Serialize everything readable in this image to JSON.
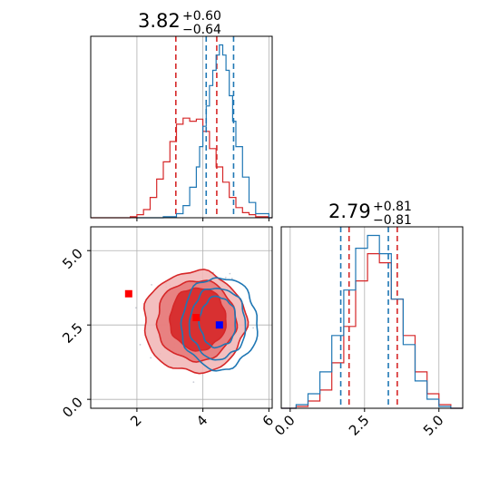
{
  "chart_data": [
    {
      "panel": "marginal-param-1",
      "type": "histogram",
      "title": {
        "value": "3.82",
        "upper": "+0.60",
        "lower": "−0.64"
      },
      "xlim": [
        0.6,
        6.1
      ],
      "grid": true,
      "series": [
        {
          "color": "#d62728",
          "x": [
            0.6,
            1.0,
            1.4,
            1.8,
            2.0,
            2.2,
            2.4,
            2.6,
            2.8,
            3.0,
            3.2,
            3.4,
            3.6,
            3.8,
            4.0,
            4.2,
            4.4,
            4.6,
            4.8,
            5.0,
            5.2,
            5.4,
            5.6,
            6.0
          ],
          "counts": [
            0,
            0,
            0,
            1,
            3,
            8,
            20,
            38,
            55,
            75,
            92,
            98,
            95,
            97,
            85,
            68,
            50,
            35,
            20,
            10,
            5,
            3,
            1,
            0
          ],
          "quantile_lines": [
            3.18,
            4.42
          ]
        },
        {
          "color": "#1f77b4",
          "x": [
            2.0,
            2.4,
            2.8,
            3.2,
            3.4,
            3.6,
            3.8,
            3.9,
            4.0,
            4.1,
            4.2,
            4.3,
            4.4,
            4.5,
            4.6,
            4.7,
            4.8,
            4.9,
            5.0,
            5.2,
            5.4,
            5.6,
            6.0
          ],
          "counts": [
            0,
            0,
            1,
            4,
            12,
            30,
            50,
            70,
            90,
            110,
            130,
            145,
            160,
            170,
            160,
            145,
            120,
            95,
            70,
            40,
            15,
            4,
            0
          ],
          "quantile_lines": [
            4.1,
            4.93
          ]
        }
      ]
    },
    {
      "panel": "marginal-param-2",
      "type": "histogram",
      "title": {
        "value": "2.79",
        "upper": "+0.81",
        "lower": "−0.81"
      },
      "xlim": [
        -0.3,
        5.8
      ],
      "xticks": [
        "0.0",
        "2.5",
        "5.0"
      ],
      "grid": true,
      "series": [
        {
          "color": "#d62728",
          "x": [
            -0.3,
            0.2,
            0.6,
            1.0,
            1.4,
            1.8,
            2.2,
            2.6,
            3.0,
            3.4,
            3.8,
            4.2,
            4.6,
            5.0,
            5.4,
            5.8
          ],
          "counts": [
            0,
            1,
            4,
            10,
            25,
            45,
            70,
            85,
            80,
            60,
            40,
            20,
            8,
            2,
            0,
            0
          ],
          "quantile_lines": [
            1.98,
            3.6
          ]
        },
        {
          "color": "#1f77b4",
          "x": [
            -0.3,
            0.2,
            0.6,
            1.0,
            1.4,
            1.8,
            2.2,
            2.6,
            3.0,
            3.4,
            3.8,
            4.2,
            4.6,
            5.0,
            5.4,
            5.8
          ],
          "counts": [
            0,
            2,
            8,
            20,
            40,
            65,
            88,
            95,
            85,
            60,
            35,
            15,
            5,
            1,
            0,
            0
          ],
          "quantile_lines": [
            1.7,
            3.3
          ]
        }
      ]
    },
    {
      "panel": "joint-param-1-vs-param-2",
      "type": "contour",
      "xlim": [
        0.6,
        6.1
      ],
      "ylim": [
        -0.3,
        5.8
      ],
      "xticks": [
        "2",
        "4",
        "6"
      ],
      "yticks": [
        "0.0",
        "2.5",
        "5.0"
      ],
      "grid": true,
      "red": {
        "color": "#d62728",
        "contours": [
          {
            "level": "outer",
            "cx": 3.75,
            "cy": 2.6,
            "rx": 1.55,
            "ry": 1.7
          },
          {
            "level": "middle",
            "cx": 3.8,
            "cy": 2.65,
            "rx": 1.2,
            "ry": 1.35
          },
          {
            "level": "inner",
            "cx": 3.85,
            "cy": 2.7,
            "rx": 0.85,
            "ry": 1.05
          }
        ]
      },
      "blue": {
        "color": "#1f77b4",
        "contours": [
          {
            "level": "outer",
            "cx": 4.5,
            "cy": 2.55,
            "rx": 1.15,
            "ry": 1.55
          },
          {
            "level": "middle",
            "cx": 4.45,
            "cy": 2.55,
            "rx": 0.85,
            "ry": 1.2
          },
          {
            "level": "inner",
            "cx": 4.45,
            "cy": 2.6,
            "rx": 0.55,
            "ry": 0.85
          }
        ]
      },
      "markers": [
        {
          "x": 1.75,
          "y": 3.55,
          "color": "#ff0000"
        },
        {
          "x": 3.8,
          "y": 2.75,
          "color": "#ff0000"
        },
        {
          "x": 4.5,
          "y": 2.5,
          "color": "#0000ff"
        }
      ]
    }
  ]
}
